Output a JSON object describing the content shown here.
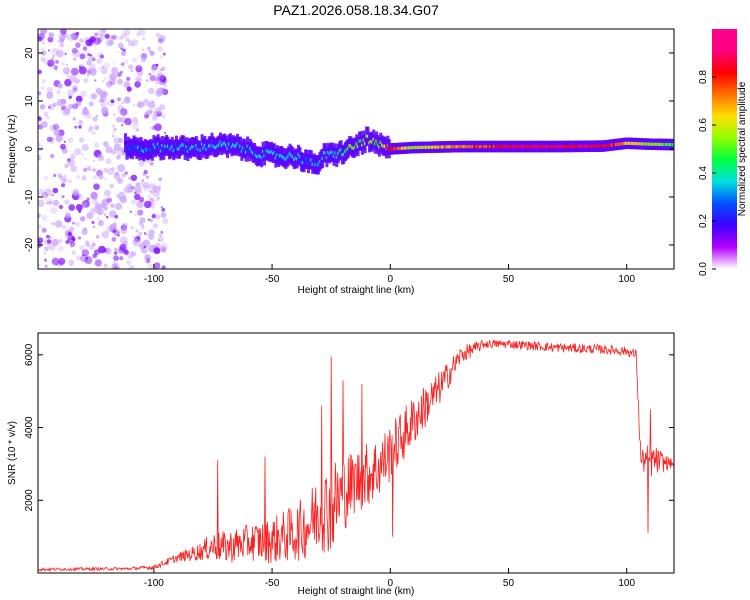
{
  "title": "PAZ1.2026.058.18.34.G07",
  "colorbar": {
    "label": "Normalized spectral amplitude",
    "ticks": [
      "0.0",
      "0.2",
      "0.4",
      "0.6",
      "0.8"
    ],
    "tick_values": [
      0.0,
      0.2,
      0.4,
      0.6,
      0.8
    ],
    "range": [
      0,
      1
    ],
    "colors": [
      "#ffffff",
      "#b400ff",
      "#3c00ff",
      "#0050ff",
      "#00e0e0",
      "#00ff40",
      "#90ff00",
      "#ffe000",
      "#ff7000",
      "#ff0000",
      "#ff0080",
      "#ff0090"
    ]
  },
  "chart_data": [
    {
      "type": "heatmap",
      "name": "spectrogram",
      "title": "PAZ1.2026.058.18.34.G07",
      "xlabel": "Height of straight line (km)",
      "ylabel": "Frequency (Hz)",
      "xlim": [
        -149,
        120
      ],
      "ylim": [
        -25,
        25
      ],
      "xticks": [
        -100,
        -50,
        0,
        50,
        100
      ],
      "yticks": [
        -20,
        -10,
        0,
        10,
        20
      ],
      "ridge": {
        "description": "dominant frequency vs height",
        "x": [
          -112,
          -105,
          -95,
          -85,
          -75,
          -65,
          -55,
          -45,
          -40,
          -35,
          -32,
          -28,
          -22,
          -15,
          -10,
          -8,
          -5,
          0,
          10,
          30,
          50,
          70,
          90,
          100,
          110,
          120
        ],
        "y": [
          0.5,
          0.0,
          0.5,
          0.0,
          0.8,
          0.5,
          -1.0,
          -1.5,
          -1.5,
          -2.5,
          -3.5,
          -1.5,
          -1.0,
          0.5,
          2.0,
          1.5,
          0.8,
          0.0,
          0.3,
          0.5,
          0.5,
          0.5,
          0.6,
          1.2,
          1.0,
          0.9
        ],
        "amplitude": [
          0.3,
          0.35,
          0.35,
          0.4,
          0.4,
          0.4,
          0.4,
          0.4,
          0.4,
          0.35,
          0.35,
          0.4,
          0.45,
          0.55,
          0.6,
          0.6,
          0.55,
          0.85,
          0.6,
          0.75,
          0.9,
          0.92,
          0.9,
          0.7,
          0.6,
          0.55
        ]
      },
      "noise_region": {
        "x_start": -149,
        "x_end": -100,
        "y_range": [
          -25,
          25
        ],
        "amplitude_max": 0.25
      }
    },
    {
      "type": "line",
      "name": "snr",
      "xlabel": "Height of straight line (km)",
      "ylabel": "SNR (10 * v/v)",
      "xlim": [
        -149,
        120
      ],
      "ylim": [
        0,
        6600
      ],
      "xticks": [
        -100,
        -50,
        0,
        50,
        100
      ],
      "yticks": [
        2000,
        4000,
        6000
      ],
      "color": "#ff2020",
      "envelope": {
        "x": [
          -149,
          -130,
          -110,
          -100,
          -90,
          -80,
          -75,
          -70,
          -60,
          -50,
          -40,
          -35,
          -30,
          -25,
          -20,
          -15,
          -10,
          -5,
          0,
          10,
          20,
          30,
          40,
          50,
          70,
          90,
          100,
          104,
          106,
          110,
          120
        ],
        "mean": [
          100,
          110,
          120,
          160,
          420,
          600,
          750,
          700,
          850,
          900,
          1100,
          1300,
          1700,
          1800,
          2200,
          2500,
          2700,
          2900,
          3300,
          4200,
          5000,
          6000,
          6300,
          6300,
          6200,
          6150,
          6100,
          6000,
          3100,
          3100,
          3000
        ],
        "spread": [
          40,
          40,
          40,
          60,
          120,
          260,
          400,
          450,
          500,
          650,
          800,
          900,
          1100,
          1300,
          1100,
          900,
          900,
          900,
          800,
          700,
          500,
          250,
          120,
          120,
          130,
          130,
          130,
          130,
          300,
          500,
          80
        ]
      },
      "spikes": [
        {
          "x": -73,
          "y": 3100
        },
        {
          "x": -53,
          "y": 3200
        },
        {
          "x": -29,
          "y": 4600
        },
        {
          "x": -25,
          "y": 5950
        },
        {
          "x": -20,
          "y": 5300
        },
        {
          "x": -12,
          "y": 5200
        },
        {
          "x": 1,
          "y": 1000
        },
        {
          "x": 109,
          "y": 1100
        },
        {
          "x": 110,
          "y": 4500
        }
      ]
    }
  ]
}
